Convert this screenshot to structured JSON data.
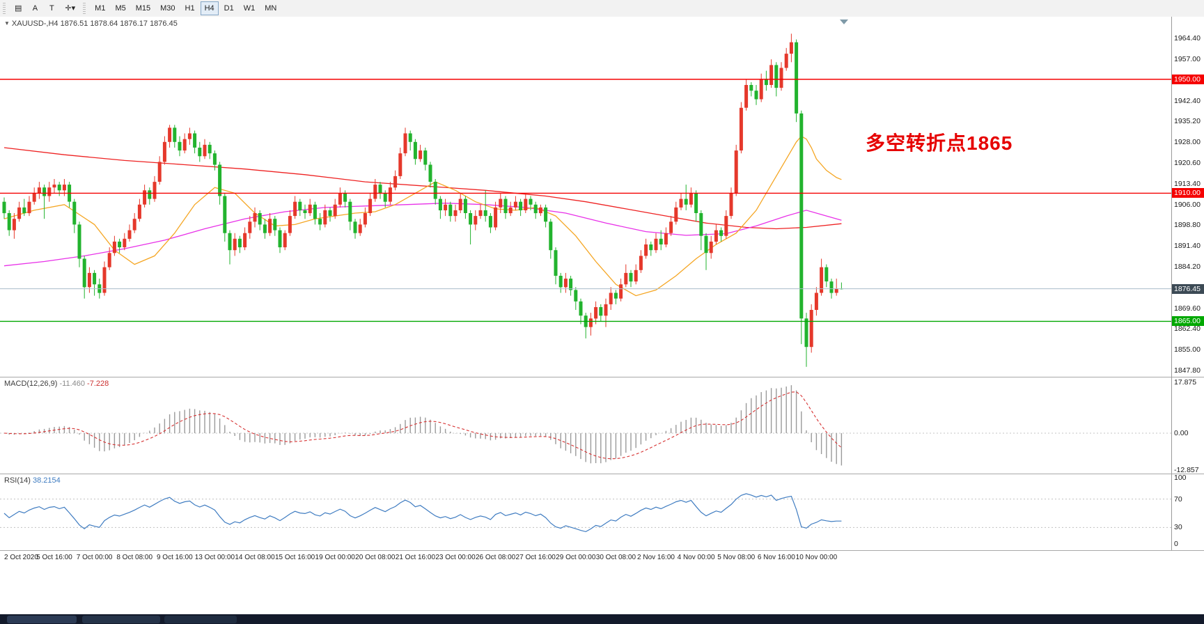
{
  "toolbar": {
    "tools": [
      {
        "id": "chart-list",
        "glyph": "▤"
      },
      {
        "id": "text-annotation",
        "glyph": "A"
      },
      {
        "id": "template",
        "glyph": "T"
      },
      {
        "id": "crosshair-dropdown",
        "glyph": "✛▾"
      }
    ],
    "timeframes": [
      "M1",
      "M5",
      "M15",
      "M30",
      "H1",
      "H4",
      "D1",
      "W1",
      "MN"
    ],
    "active_timeframe": "H4"
  },
  "chart": {
    "symbol_title": "XAUUSD-,H4",
    "ohlc_display": "1876.51 1878.64 1876.17 1876.45",
    "annotation": {
      "text": "多空转折点1865",
      "color": "#e60000"
    },
    "levels": [
      {
        "price": 1950.0,
        "label": "1950.00",
        "color": "#f50000"
      },
      {
        "price": 1910.0,
        "label": "1910.00",
        "color": "#f50000"
      },
      {
        "price": 1865.0,
        "label": "1865.00",
        "color": "#00a800"
      }
    ],
    "current_price": {
      "value": 1876.45,
      "label": "1876.45",
      "label_bg": "#3c4a55"
    },
    "colors": {
      "up": "#e5382b",
      "down": "#22b32e",
      "ma_fast": "#f5a623",
      "ma_mid": "#e831e8",
      "ma_slow": "#ee2222",
      "bid_line": "#a8bcc9"
    },
    "y_ticks": [
      [
        "1964.40",
        1964.4
      ],
      [
        "1957.00",
        1957.0
      ],
      [
        "1942.40",
        1942.4
      ],
      [
        "1935.20",
        1935.2
      ],
      [
        "1928.00",
        1928.0
      ],
      [
        "1920.60",
        1920.6
      ],
      [
        "1913.40",
        1913.4
      ],
      [
        "1906.00",
        1906.0
      ],
      [
        "1898.80",
        1898.8
      ],
      [
        "1891.40",
        1891.4
      ],
      [
        "1884.20",
        1884.2
      ],
      [
        "1869.60",
        1869.6
      ],
      [
        "1862.40",
        1862.4
      ],
      [
        "1855.00",
        1855.0
      ],
      [
        "1847.80",
        1847.8
      ]
    ],
    "x_labels": [
      [
        "2 Oct 2020",
        0
      ],
      [
        "5 Oct 16:00",
        10
      ],
      [
        "7 Oct 00:00",
        18
      ],
      [
        "8 Oct 08:00",
        26
      ],
      [
        "9 Oct 16:00",
        34
      ],
      [
        "13 Oct 00:00",
        42
      ],
      [
        "14 Oct 08:00",
        50
      ],
      [
        "15 Oct 16:00",
        58
      ],
      [
        "19 Oct 00:00",
        66
      ],
      [
        "20 Oct 08:00",
        74
      ],
      [
        "21 Oct 16:00",
        82
      ],
      [
        "23 Oct 00:00",
        90
      ],
      [
        "26 Oct 08:00",
        98
      ],
      [
        "27 Oct 16:00",
        106
      ],
      [
        "29 Oct 00:00",
        114
      ],
      [
        "30 Oct 08:00",
        122
      ],
      [
        "2 Nov 16:00",
        130
      ],
      [
        "4 Nov 00:00",
        138
      ],
      [
        "5 Nov 08:00",
        146
      ],
      [
        "6 Nov 16:00",
        154
      ],
      [
        "10 Nov 00:00",
        162
      ]
    ]
  },
  "macd": {
    "title": "MACD(12,26,9)",
    "main_value": "-11.460",
    "signal_value": "-7.228",
    "colors": {
      "histogram": "#9a9a9a",
      "signal": "#d63030"
    },
    "y_ticks": [
      [
        "17.875",
        17.875
      ],
      [
        "0.00",
        0
      ],
      [
        "-12.857",
        -12.857
      ]
    ]
  },
  "rsi": {
    "title": "RSI(14)",
    "value": "38.2154",
    "color": "#3f7cc1",
    "y_ticks": [
      [
        "100",
        100
      ],
      [
        "70",
        70
      ],
      [
        "30",
        30
      ],
      [
        "0",
        0
      ]
    ]
  },
  "chart_data": {
    "type": "candlestick",
    "symbol": "XAUUSD",
    "timeframe": "H4",
    "ohlc": [
      [
        1907,
        1908.5,
        1901,
        1903
      ],
      [
        1903,
        1904,
        1895,
        1897
      ],
      [
        1897,
        1903,
        1894,
        1901
      ],
      [
        1901,
        1907,
        1900,
        1905
      ],
      [
        1905,
        1908,
        1902,
        1903
      ],
      [
        1903,
        1909,
        1902,
        1907
      ],
      [
        1907,
        1912,
        1906,
        1910
      ],
      [
        1910,
        1914,
        1908,
        1912
      ],
      [
        1912,
        1913,
        1901,
        1909
      ],
      [
        1909,
        1914,
        1907,
        1912
      ],
      [
        1912,
        1915,
        1910,
        1913
      ],
      [
        1913,
        1914,
        1909,
        1911
      ],
      [
        1911,
        1915,
        1909,
        1913
      ],
      [
        1913,
        1914,
        1905,
        1907
      ],
      [
        1907,
        1908,
        1896,
        1899
      ],
      [
        1899,
        1900,
        1884,
        1887
      ],
      [
        1887,
        1888,
        1873,
        1877
      ],
      [
        1877,
        1884,
        1875,
        1882
      ],
      [
        1882,
        1883,
        1874,
        1878
      ],
      [
        1878,
        1880,
        1873,
        1875
      ],
      [
        1875,
        1886,
        1874,
        1884
      ],
      [
        1884,
        1891,
        1883,
        1889
      ],
      [
        1889,
        1895,
        1888,
        1893
      ],
      [
        1893,
        1894,
        1889,
        1891
      ],
      [
        1891,
        1896,
        1890,
        1894
      ],
      [
        1894,
        1899,
        1893,
        1897
      ],
      [
        1897,
        1903,
        1896,
        1901
      ],
      [
        1901,
        1908,
        1900,
        1906
      ],
      [
        1906,
        1913,
        1905,
        1911
      ],
      [
        1911,
        1912,
        1906,
        1908
      ],
      [
        1908,
        1916,
        1907,
        1914
      ],
      [
        1914,
        1923,
        1913,
        1921
      ],
      [
        1921,
        1930,
        1920,
        1928
      ],
      [
        1928,
        1934,
        1926,
        1933
      ],
      [
        1933,
        1934,
        1926,
        1928
      ],
      [
        1928,
        1930,
        1923,
        1925
      ],
      [
        1925,
        1931,
        1924,
        1929
      ],
      [
        1929,
        1933,
        1927,
        1931
      ],
      [
        1931,
        1932,
        1924,
        1926
      ],
      [
        1926,
        1928,
        1921,
        1923
      ],
      [
        1923,
        1929,
        1922,
        1927
      ],
      [
        1927,
        1928,
        1922,
        1924
      ],
      [
        1924,
        1925,
        1918,
        1920
      ],
      [
        1920,
        1921,
        1906,
        1909
      ],
      [
        1909,
        1910,
        1893,
        1896
      ],
      [
        1896,
        1897,
        1885,
        1890
      ],
      [
        1890,
        1896,
        1888,
        1894
      ],
      [
        1894,
        1895,
        1889,
        1891
      ],
      [
        1891,
        1898,
        1890,
        1896
      ],
      [
        1896,
        1902,
        1894,
        1900
      ],
      [
        1900,
        1905,
        1898,
        1903
      ],
      [
        1903,
        1904,
        1897,
        1899
      ],
      [
        1899,
        1901,
        1894,
        1896
      ],
      [
        1896,
        1903,
        1895,
        1901
      ],
      [
        1901,
        1902,
        1895,
        1897
      ],
      [
        1897,
        1898,
        1889,
        1891
      ],
      [
        1891,
        1897,
        1890,
        1896
      ],
      [
        1896,
        1904,
        1895,
        1902
      ],
      [
        1902,
        1909,
        1901,
        1907
      ],
      [
        1907,
        1908,
        1902,
        1904
      ],
      [
        1904,
        1906,
        1901,
        1903
      ],
      [
        1903,
        1908,
        1902,
        1906
      ],
      [
        1906,
        1907,
        1899,
        1901
      ],
      [
        1901,
        1903,
        1897,
        1899
      ],
      [
        1899,
        1906,
        1898,
        1904
      ],
      [
        1904,
        1905,
        1900,
        1902
      ],
      [
        1902,
        1908,
        1901,
        1906
      ],
      [
        1906,
        1912,
        1905,
        1910
      ],
      [
        1910,
        1911,
        1905,
        1907
      ],
      [
        1907,
        1908,
        1897,
        1900
      ],
      [
        1900,
        1901,
        1894,
        1896
      ],
      [
        1896,
        1901,
        1895,
        1899
      ],
      [
        1899,
        1905,
        1898,
        1903
      ],
      [
        1903,
        1910,
        1902,
        1908
      ],
      [
        1908,
        1915,
        1907,
        1913
      ],
      [
        1913,
        1914,
        1908,
        1910
      ],
      [
        1910,
        1911,
        1905,
        1907
      ],
      [
        1907,
        1914,
        1906,
        1912
      ],
      [
        1912,
        1918,
        1911,
        1916
      ],
      [
        1916,
        1926,
        1915,
        1924
      ],
      [
        1924,
        1933,
        1923,
        1931
      ],
      [
        1931,
        1932,
        1925,
        1928
      ],
      [
        1928,
        1929,
        1920,
        1922
      ],
      [
        1922,
        1927,
        1921,
        1925
      ],
      [
        1925,
        1926,
        1918,
        1920
      ],
      [
        1920,
        1921,
        1912,
        1914
      ],
      [
        1914,
        1915,
        1906,
        1908
      ],
      [
        1908,
        1909,
        1901,
        1904
      ],
      [
        1904,
        1908,
        1902,
        1906
      ],
      [
        1906,
        1907,
        1900,
        1902
      ],
      [
        1902,
        1906,
        1900,
        1904
      ],
      [
        1904,
        1910,
        1903,
        1908
      ],
      [
        1908,
        1909,
        1901,
        1903
      ],
      [
        1903,
        1904,
        1892,
        1899
      ],
      [
        1899,
        1904,
        1897,
        1902
      ],
      [
        1902,
        1906,
        1901,
        1904
      ],
      [
        1904,
        1911,
        1900,
        1902
      ],
      [
        1902,
        1903,
        1896,
        1898
      ],
      [
        1898,
        1907,
        1897,
        1905
      ],
      [
        1905,
        1910,
        1903,
        1908
      ],
      [
        1908,
        1909,
        1901,
        1903
      ],
      [
        1903,
        1907,
        1902,
        1905
      ],
      [
        1905,
        1909,
        1904,
        1907
      ],
      [
        1907,
        1908,
        1902,
        1904
      ],
      [
        1904,
        1910,
        1903,
        1908
      ],
      [
        1908,
        1909,
        1904,
        1906
      ],
      [
        1906,
        1907,
        1901,
        1903
      ],
      [
        1903,
        1906,
        1902,
        1905
      ],
      [
        1905,
        1906,
        1898,
        1900
      ],
      [
        1900,
        1901,
        1887,
        1890
      ],
      [
        1890,
        1891,
        1878,
        1881
      ],
      [
        1881,
        1882,
        1875,
        1877
      ],
      [
        1877,
        1882,
        1875,
        1880
      ],
      [
        1880,
        1881,
        1874,
        1876
      ],
      [
        1876,
        1877,
        1869,
        1872
      ],
      [
        1872,
        1873,
        1864,
        1867
      ],
      [
        1867,
        1868,
        1859,
        1863
      ],
      [
        1863,
        1868,
        1860,
        1866
      ],
      [
        1866,
        1872,
        1864,
        1870
      ],
      [
        1870,
        1871,
        1865,
        1867
      ],
      [
        1867,
        1873,
        1863,
        1871
      ],
      [
        1871,
        1877,
        1869,
        1875
      ],
      [
        1875,
        1876,
        1871,
        1873
      ],
      [
        1873,
        1880,
        1872,
        1878
      ],
      [
        1878,
        1885,
        1877,
        1882
      ],
      [
        1882,
        1883,
        1877,
        1879
      ],
      [
        1879,
        1885,
        1878,
        1883
      ],
      [
        1883,
        1890,
        1882,
        1888
      ],
      [
        1888,
        1894,
        1887,
        1892
      ],
      [
        1892,
        1893,
        1888,
        1890
      ],
      [
        1890,
        1896,
        1889,
        1894
      ],
      [
        1894,
        1897,
        1890,
        1892
      ],
      [
        1892,
        1898,
        1891,
        1896
      ],
      [
        1896,
        1902,
        1895,
        1900
      ],
      [
        1900,
        1907,
        1899,
        1905
      ],
      [
        1905,
        1910,
        1904,
        1908
      ],
      [
        1908,
        1913,
        1904,
        1906
      ],
      [
        1906,
        1912,
        1905,
        1910
      ],
      [
        1910,
        1911,
        1900,
        1903
      ],
      [
        1903,
        1904,
        1890,
        1895
      ],
      [
        1895,
        1896,
        1883,
        1889
      ],
      [
        1889,
        1895,
        1887,
        1893
      ],
      [
        1893,
        1899,
        1892,
        1897
      ],
      [
        1897,
        1898,
        1893,
        1895
      ],
      [
        1895,
        1904,
        1894,
        1902
      ],
      [
        1902,
        1912,
        1901,
        1910
      ],
      [
        1910,
        1927,
        1909,
        1925
      ],
      [
        1925,
        1942,
        1924,
        1940
      ],
      [
        1940,
        1950,
        1939,
        1948
      ],
      [
        1948,
        1949,
        1944,
        1946
      ],
      [
        1946,
        1948,
        1941,
        1943
      ],
      [
        1943,
        1952,
        1942,
        1950
      ],
      [
        1950,
        1953,
        1946,
        1948
      ],
      [
        1948,
        1957,
        1947,
        1955
      ],
      [
        1955,
        1956,
        1944,
        1947
      ],
      [
        1947,
        1956,
        1946,
        1954
      ],
      [
        1954,
        1961,
        1953,
        1959
      ],
      [
        1959,
        1966,
        1956,
        1963
      ],
      [
        1963,
        1964,
        1935,
        1938
      ],
      [
        1938,
        1939,
        1857,
        1866
      ],
      [
        1866,
        1868,
        1849,
        1856
      ],
      [
        1856,
        1871,
        1854,
        1869
      ],
      [
        1869,
        1877,
        1867,
        1875
      ],
      [
        1875,
        1887,
        1874,
        1884
      ],
      [
        1884,
        1885,
        1877,
        1879
      ],
      [
        1879,
        1880,
        1873,
        1875
      ],
      [
        1875,
        1880,
        1874,
        1876.5
      ],
      [
        1876.51,
        1878.64,
        1876.17,
        1876.45
      ]
    ],
    "ma_fast": [
      [
        0,
        1901
      ],
      [
        6,
        1904
      ],
      [
        12,
        1906
      ],
      [
        18,
        1899
      ],
      [
        22,
        1890
      ],
      [
        26,
        1885
      ],
      [
        30,
        1888
      ],
      [
        34,
        1896
      ],
      [
        38,
        1906
      ],
      [
        42,
        1912
      ],
      [
        46,
        1910
      ],
      [
        50,
        1903
      ],
      [
        54,
        1898.5
      ],
      [
        58,
        1899
      ],
      [
        62,
        1901
      ],
      [
        66,
        1902
      ],
      [
        70,
        1903
      ],
      [
        74,
        1903.5
      ],
      [
        78,
        1906
      ],
      [
        82,
        1910
      ],
      [
        86,
        1914
      ],
      [
        90,
        1911
      ],
      [
        94,
        1907
      ],
      [
        98,
        1904.5
      ],
      [
        102,
        1904
      ],
      [
        106,
        1905
      ],
      [
        110,
        1902
      ],
      [
        114,
        1895
      ],
      [
        118,
        1886
      ],
      [
        122,
        1878
      ],
      [
        126,
        1874
      ],
      [
        130,
        1876
      ],
      [
        134,
        1881
      ],
      [
        138,
        1887
      ],
      [
        142,
        1892
      ],
      [
        146,
        1896
      ],
      [
        150,
        1904
      ],
      [
        153,
        1913
      ],
      [
        156,
        1922
      ],
      [
        158,
        1928
      ],
      [
        159,
        1930
      ],
      [
        160,
        1929
      ],
      [
        161,
        1926
      ],
      [
        162,
        1922
      ],
      [
        164,
        1918
      ],
      [
        166,
        1915.5
      ],
      [
        167,
        1914.8
      ]
    ],
    "ma_mid": [
      [
        0,
        1884.5
      ],
      [
        8,
        1886
      ],
      [
        16,
        1888
      ],
      [
        24,
        1890.5
      ],
      [
        32,
        1893.5
      ],
      [
        40,
        1897.5
      ],
      [
        48,
        1901
      ],
      [
        56,
        1903.5
      ],
      [
        64,
        1905
      ],
      [
        72,
        1905.5
      ],
      [
        80,
        1906
      ],
      [
        88,
        1906.5
      ],
      [
        96,
        1906
      ],
      [
        104,
        1905
      ],
      [
        112,
        1903
      ],
      [
        120,
        1899.5
      ],
      [
        128,
        1896.5
      ],
      [
        136,
        1895.2
      ],
      [
        144,
        1895.8
      ],
      [
        150,
        1898.5
      ],
      [
        156,
        1902
      ],
      [
        160,
        1904
      ],
      [
        164,
        1902
      ],
      [
        167,
        1900.5
      ]
    ],
    "ma_slow": [
      [
        0,
        1926
      ],
      [
        12,
        1923.5
      ],
      [
        24,
        1921.5
      ],
      [
        36,
        1920
      ],
      [
        48,
        1918.5
      ],
      [
        60,
        1916.5
      ],
      [
        72,
        1914
      ],
      [
        84,
        1912.5
      ],
      [
        96,
        1911
      ],
      [
        108,
        1909
      ],
      [
        116,
        1907
      ],
      [
        124,
        1904.5
      ],
      [
        132,
        1902
      ],
      [
        140,
        1899.5
      ],
      [
        148,
        1898
      ],
      [
        154,
        1897.5
      ],
      [
        160,
        1898
      ],
      [
        167,
        1899.3
      ]
    ]
  }
}
